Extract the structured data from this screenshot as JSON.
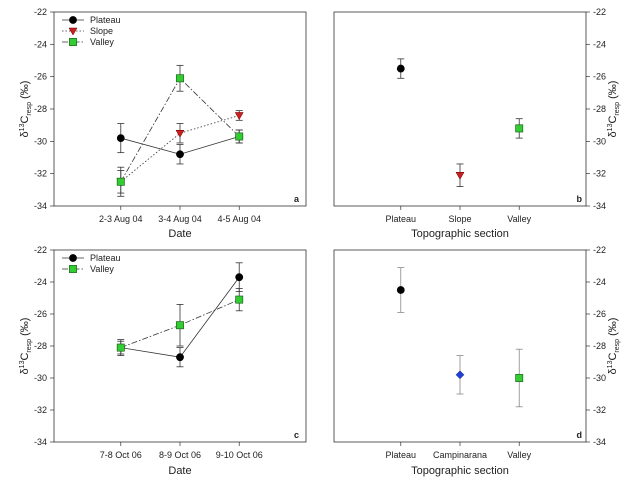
{
  "chart_data": [
    {
      "panel": "a",
      "type": "line",
      "categories": [
        "2-3 Aug 04",
        "3-4 Aug 04",
        "4-5 Aug 04"
      ],
      "xlabel": "Date",
      "ylabel": "δ¹³C_resp (‰)",
      "ylabel_main": "δ",
      "ylabel_sup": "13",
      "ylabel_c": "C",
      "ylabel_sub": "resp",
      "ylabel_unit": " (‰)",
      "ylim": [
        -34,
        -22
      ],
      "yticks": [
        -22,
        -24,
        -26,
        -28,
        -30,
        -32,
        -34
      ],
      "y_axis_side": "left",
      "grid": false,
      "legend": "top-left",
      "series": [
        {
          "name": "Plateau",
          "values": [
            -29.8,
            -30.8,
            -29.7
          ],
          "err": [
            0.9,
            0.6,
            0.4
          ],
          "marker": "circle",
          "color": "#000000",
          "line": "solid"
        },
        {
          "name": "Slope",
          "values": [
            -32.5,
            -29.5,
            -28.4
          ],
          "err": [
            0.7,
            0.6,
            0.3
          ],
          "marker": "triangle-down",
          "color": "#cc1f1f",
          "line": "dotted"
        },
        {
          "name": "Valley",
          "values": [
            -32.5,
            -26.1,
            -29.7
          ],
          "err": [
            0.9,
            0.8,
            0.4
          ],
          "marker": "square",
          "color": "#33cc33",
          "line": "dashdot"
        }
      ]
    },
    {
      "panel": "b",
      "type": "scatter",
      "categories": [
        "Plateau",
        "Slope",
        "Valley"
      ],
      "xlabel": "Topographic section",
      "ylabel": "δ¹³C_resp (‰)",
      "ylabel_main": "δ",
      "ylabel_sup": "13",
      "ylabel_c": "C",
      "ylabel_sub": "resp",
      "ylabel_unit": " (‰)",
      "ylim": [
        -34,
        -22
      ],
      "yticks": [
        -22,
        -24,
        -26,
        -28,
        -30,
        -32,
        -34
      ],
      "y_axis_side": "right",
      "grid": false,
      "points": [
        {
          "category": "Plateau",
          "value": -25.5,
          "err": 0.6,
          "marker": "circle",
          "color": "#000000"
        },
        {
          "category": "Slope",
          "value": -32.1,
          "err": 0.7,
          "marker": "triangle-down",
          "color": "#cc1f1f"
        },
        {
          "category": "Valley",
          "value": -29.2,
          "err": 0.6,
          "marker": "square",
          "color": "#33cc33"
        }
      ]
    },
    {
      "panel": "c",
      "type": "line",
      "categories": [
        "7-8 Oct 06",
        "8-9 Oct 06",
        "9-10 Oct 06"
      ],
      "xlabel": "Date",
      "ylabel": "δ¹³C_resp (‰)",
      "ylabel_main": "δ",
      "ylabel_sup": "13",
      "ylabel_c": "C",
      "ylabel_sub": "resp",
      "ylabel_unit": " (‰)",
      "ylim": [
        -34,
        -22
      ],
      "yticks": [
        -22,
        -24,
        -26,
        -28,
        -30,
        -32,
        -34
      ],
      "y_axis_side": "left",
      "grid": false,
      "legend": "top-left",
      "series": [
        {
          "name": "Plateau",
          "values": [
            -28.1,
            -28.7,
            -23.7
          ],
          "err": [
            0.5,
            0.6,
            0.9
          ],
          "marker": "circle",
          "color": "#000000",
          "line": "solid"
        },
        {
          "name": "Valley",
          "values": [
            -28.1,
            -26.7,
            -25.1
          ],
          "err": [
            0.4,
            1.3,
            0.7
          ],
          "marker": "square",
          "color": "#33cc33",
          "line": "dashdot"
        }
      ]
    },
    {
      "panel": "d",
      "type": "scatter",
      "categories": [
        "Plateau",
        "Campinarana",
        "Valley"
      ],
      "xlabel": "Topographic section",
      "ylabel": "δ¹³C_resp (‰)",
      "ylabel_main": "δ",
      "ylabel_sup": "13",
      "ylabel_c": "C",
      "ylabel_sub": "resp",
      "ylabel_unit": " (‰)",
      "ylim": [
        -34,
        -22
      ],
      "yticks": [
        -22,
        -24,
        -26,
        -28,
        -30,
        -32,
        -34
      ],
      "y_axis_side": "right",
      "grid": false,
      "points": [
        {
          "category": "Plateau",
          "value": -24.5,
          "err": 1.4,
          "marker": "circle",
          "color": "#000000"
        },
        {
          "category": "Campinarana",
          "value": -29.8,
          "err": 1.2,
          "marker": "diamond",
          "color": "#1f3fd6"
        },
        {
          "category": "Valley",
          "value": -30.0,
          "err": 1.8,
          "marker": "square",
          "color": "#33cc33"
        }
      ]
    }
  ]
}
